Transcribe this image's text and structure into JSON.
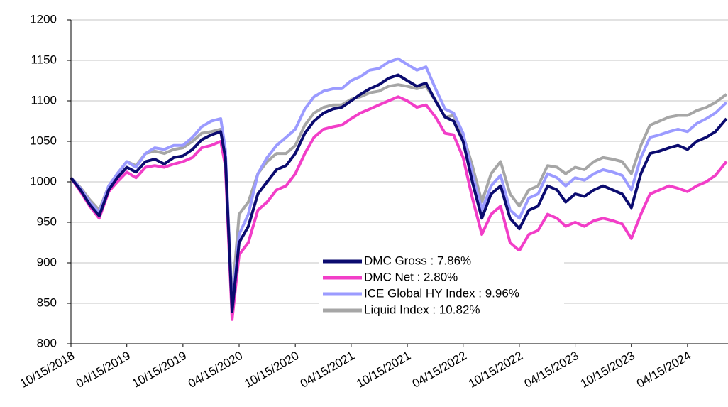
{
  "chart_data": {
    "type": "line",
    "x": [
      "10/15/2018",
      "11/15/2018",
      "12/15/2018",
      "01/15/2019",
      "02/15/2019",
      "03/15/2019",
      "04/15/2019",
      "05/15/2019",
      "06/15/2019",
      "07/15/2019",
      "08/15/2019",
      "09/15/2019",
      "10/15/2019",
      "11/15/2019",
      "12/15/2019",
      "01/15/2020",
      "02/15/2020",
      "03/01/2020",
      "03/23/2020",
      "04/15/2020",
      "05/15/2020",
      "06/15/2020",
      "07/15/2020",
      "08/15/2020",
      "09/15/2020",
      "10/15/2020",
      "11/15/2020",
      "12/15/2020",
      "01/15/2021",
      "02/15/2021",
      "03/15/2021",
      "04/15/2021",
      "05/15/2021",
      "06/15/2021",
      "07/15/2021",
      "08/15/2021",
      "09/15/2021",
      "10/15/2021",
      "11/15/2021",
      "12/15/2021",
      "01/15/2022",
      "02/15/2022",
      "03/15/2022",
      "04/15/2022",
      "05/15/2022",
      "06/15/2022",
      "07/15/2022",
      "08/15/2022",
      "09/15/2022",
      "10/15/2022",
      "11/15/2022",
      "12/15/2022",
      "01/15/2023",
      "02/15/2023",
      "03/15/2023",
      "04/15/2023",
      "05/15/2023",
      "06/15/2023",
      "07/15/2023",
      "08/15/2023",
      "09/15/2023",
      "10/15/2023",
      "11/15/2023",
      "12/15/2023",
      "01/15/2024",
      "02/15/2024",
      "03/15/2024",
      "04/15/2024",
      "05/15/2024",
      "06/15/2024",
      "07/15/2024",
      "08/20/2024"
    ],
    "series": [
      {
        "name": "DMC Gross : 7.86%",
        "color": "#0b0b6f",
        "values": [
          1005,
          990,
          972,
          958,
          990,
          1005,
          1018,
          1012,
          1025,
          1028,
          1022,
          1030,
          1032,
          1040,
          1052,
          1058,
          1062,
          1030,
          840,
          925,
          945,
          985,
          1000,
          1015,
          1020,
          1035,
          1060,
          1075,
          1085,
          1090,
          1092,
          1100,
          1108,
          1115,
          1120,
          1128,
          1132,
          1125,
          1118,
          1122,
          1100,
          1080,
          1075,
          1050,
          1000,
          955,
          985,
          995,
          955,
          942,
          965,
          970,
          995,
          990,
          975,
          985,
          982,
          990,
          995,
          990,
          985,
          968,
          1010,
          1035,
          1038,
          1042,
          1045,
          1040,
          1050,
          1055,
          1062,
          1078
        ]
      },
      {
        "name": "DMC Net : 2.80%",
        "color": "#f23ec8",
        "values": [
          1005,
          988,
          970,
          955,
          988,
          1000,
          1012,
          1005,
          1018,
          1020,
          1018,
          1022,
          1025,
          1030,
          1042,
          1045,
          1050,
          1020,
          830,
          910,
          925,
          965,
          975,
          990,
          995,
          1010,
          1035,
          1055,
          1065,
          1068,
          1070,
          1078,
          1085,
          1090,
          1095,
          1100,
          1105,
          1100,
          1092,
          1095,
          1080,
          1060,
          1058,
          1030,
          980,
          935,
          960,
          970,
          925,
          915,
          935,
          940,
          960,
          955,
          945,
          950,
          945,
          952,
          955,
          952,
          948,
          930,
          960,
          985,
          990,
          995,
          992,
          988,
          995,
          1000,
          1008,
          1025
        ]
      },
      {
        "name": "ICE Global HY Index : 9.96%",
        "color": "#9b9bff",
        "values": [
          1005,
          992,
          975,
          962,
          995,
          1010,
          1025,
          1018,
          1035,
          1042,
          1040,
          1045,
          1045,
          1055,
          1068,
          1075,
          1078,
          1040,
          845,
          935,
          960,
          1010,
          1030,
          1045,
          1055,
          1065,
          1090,
          1105,
          1112,
          1115,
          1115,
          1125,
          1130,
          1138,
          1140,
          1148,
          1152,
          1145,
          1138,
          1142,
          1115,
          1090,
          1085,
          1060,
          1010,
          965,
          995,
          1008,
          965,
          955,
          980,
          985,
          1010,
          1005,
          995,
          1005,
          1002,
          1010,
          1015,
          1012,
          1008,
          990,
          1030,
          1055,
          1058,
          1062,
          1065,
          1062,
          1072,
          1078,
          1085,
          1098
        ]
      },
      {
        "name": "Liquid Index : 10.82%",
        "color": "#a6a6a6",
        "values": [
          1005,
          993,
          978,
          965,
          995,
          1010,
          1025,
          1020,
          1035,
          1038,
          1035,
          1040,
          1042,
          1050,
          1060,
          1062,
          1065,
          1030,
          855,
          960,
          975,
          1010,
          1025,
          1035,
          1035,
          1045,
          1070,
          1085,
          1092,
          1095,
          1095,
          1102,
          1105,
          1110,
          1112,
          1118,
          1120,
          1118,
          1115,
          1118,
          1100,
          1080,
          1082,
          1058,
          1020,
          975,
          1010,
          1025,
          985,
          970,
          990,
          995,
          1020,
          1018,
          1010,
          1018,
          1015,
          1025,
          1030,
          1028,
          1025,
          1010,
          1045,
          1070,
          1075,
          1080,
          1082,
          1082,
          1088,
          1092,
          1098,
          1108
        ]
      }
    ],
    "xlim": [
      "10/15/2018",
      "08/25/2024"
    ],
    "xticks": [
      "10/15/2018",
      "04/15/2019",
      "10/15/2019",
      "04/15/2020",
      "10/15/2020",
      "04/15/2021",
      "10/15/2021",
      "04/15/2022",
      "10/15/2022",
      "04/15/2023",
      "10/15/2023",
      "04/15/2024"
    ],
    "ylim": [
      800,
      1200
    ],
    "yticks": [
      800,
      850,
      900,
      950,
      1000,
      1050,
      1100,
      1150,
      1200
    ],
    "grid": true
  }
}
